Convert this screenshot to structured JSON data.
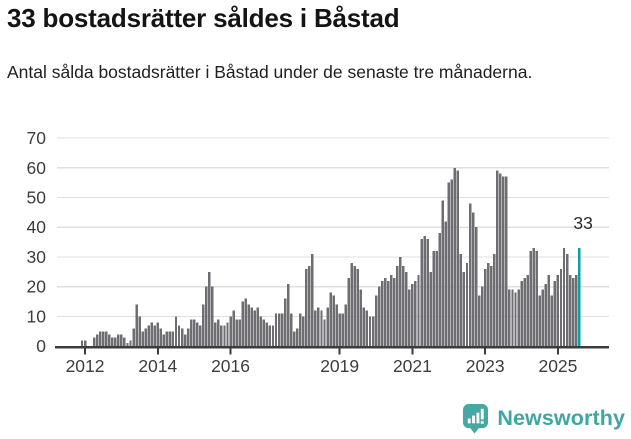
{
  "header": {
    "title": "33 bostadsrätter såldes i Båstad",
    "subtitle": "Antal sålda bostadsrätter i Båstad under de senaste tre månaderna."
  },
  "chart_data": {
    "type": "bar",
    "title": "33 bostadsrätter såldes i Båstad",
    "ylabel": "",
    "xlabel": "",
    "unit": "sålda bostadsrätter, rullande tremånadersvärde",
    "frequency": "monthly",
    "start_month": "2011-12",
    "end_month": "2025-08",
    "ylim": [
      0,
      70
    ],
    "yticks": [
      0,
      10,
      20,
      30,
      40,
      50,
      60,
      70
    ],
    "grid": true,
    "bar_color": "#6d6d72",
    "highlight_color": "#09a1a1",
    "annotation": {
      "label": "33"
    },
    "highlight_last_bar": true,
    "xticks": [
      {
        "label": "2012",
        "month": "2012-01"
      },
      {
        "label": "2014",
        "month": "2014-01"
      },
      {
        "label": "2016",
        "month": "2016-01"
      },
      {
        "label": "2019",
        "month": "2019-01"
      },
      {
        "label": "2021",
        "month": "2021-01"
      },
      {
        "label": "2023",
        "month": "2023-01"
      },
      {
        "label": "2025",
        "month": "2025-01"
      }
    ],
    "values": [
      2,
      2,
      0,
      0,
      3,
      4,
      5,
      5,
      5,
      4,
      3,
      3,
      4,
      4,
      3,
      1,
      2,
      6,
      14,
      10,
      5,
      6,
      7,
      8,
      7,
      8,
      6,
      4,
      5,
      5,
      5,
      10,
      7,
      6,
      4,
      6,
      9,
      9,
      8,
      7,
      14,
      20,
      25,
      20,
      8,
      9,
      7,
      7,
      8,
      10,
      12,
      9,
      9,
      15,
      16,
      14,
      13,
      12,
      13,
      10,
      9,
      8,
      7,
      7,
      11,
      11,
      11,
      16,
      21,
      11,
      5,
      6,
      11,
      10,
      26,
      27,
      31,
      12,
      13,
      12,
      9,
      13,
      18,
      17,
      14,
      11,
      11,
      14,
      23,
      28,
      27,
      26,
      19,
      13,
      12,
      10,
      10,
      17,
      20,
      22,
      23,
      22,
      24,
      23,
      27,
      30,
      27,
      25,
      19,
      21,
      22,
      24,
      36,
      37,
      36,
      25,
      32,
      32,
      38,
      49,
      42,
      55,
      56,
      60,
      59,
      31,
      25,
      28,
      48,
      45,
      40,
      17,
      20,
      26,
      28,
      27,
      31,
      59,
      58,
      57,
      57,
      19,
      19,
      18,
      19,
      22,
      23,
      24,
      32,
      33,
      32,
      17,
      19,
      21,
      24,
      17,
      22,
      24,
      26,
      33,
      31,
      24,
      23,
      24,
      33
    ]
  },
  "footer": {
    "brand": "Newsworthy",
    "brand_color": "#3fa7a1",
    "logo_icon": "newsworthy-speech-bubble-chart-icon"
  },
  "colors": {
    "axis_text": "#3d3d3d",
    "axis_line": "#3c3c3c",
    "gridline": "#dfdfdf",
    "annotation_text": "#2a2a2a"
  }
}
